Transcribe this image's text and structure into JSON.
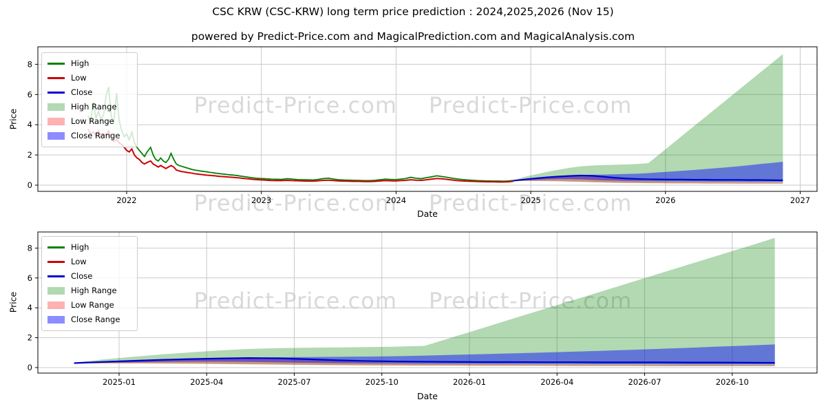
{
  "title": "CSC KRW (CSC-KRW) long term price prediction : 2024,2025,2026 (Nov 15)",
  "subtitle": "powered by Predict-Price.com and MagicalPrediction.com and MagicalAnalysis.com",
  "watermark": {
    "text": "Predict-Price.com"
  },
  "colors": {
    "high_line": "#008000",
    "low_line": "#cc0000",
    "close_line": "#0000cc",
    "high_range_fill": "rgba(0,128,0,0.30)",
    "low_range_fill": "rgba(255,0,0,0.30)",
    "close_range_fill": "rgba(0,0,255,0.45)",
    "grid": "#c9c9c9",
    "spine": "#000000"
  },
  "legend": {
    "items": [
      {
        "label": "High",
        "type": "line",
        "color": "rgba(0,128,0,1)"
      },
      {
        "label": "Low",
        "type": "line",
        "color": "rgba(204,0,0,1)"
      },
      {
        "label": "Close",
        "type": "line",
        "color": "rgba(0,0,204,1)"
      },
      {
        "label": "High Range",
        "type": "patch",
        "color": "rgba(0,128,0,0.30)"
      },
      {
        "label": "Low Range",
        "type": "patch",
        "color": "rgba(255,0,0,0.30)"
      },
      {
        "label": "Close Range",
        "type": "patch",
        "color": "rgba(0,0,255,0.45)"
      }
    ]
  },
  "chart_data": {
    "type": "line",
    "title": "CSC KRW (CSC-KRW) long term price prediction : 2024,2025,2026 (Nov 15)",
    "xlabel": "Date",
    "ylabel": "Price",
    "top_chart": {
      "ylabel": "Price",
      "xlabel": "Date",
      "y_ticks": [
        0,
        2,
        4,
        6,
        8
      ],
      "ylim": [
        -0.4,
        9.15
      ],
      "x_ticks": [
        {
          "date": "2022-01-01",
          "label": "2022"
        },
        {
          "date": "2023-01-01",
          "label": "2023"
        },
        {
          "date": "2024-01-01",
          "label": "2024"
        },
        {
          "date": "2025-01-01",
          "label": "2025"
        },
        {
          "date": "2026-01-01",
          "label": "2026"
        },
        {
          "date": "2027-01-01",
          "label": "2027"
        }
      ]
    },
    "bottom_chart": {
      "ylabel": "Price",
      "xlabel": "Date",
      "y_ticks": [
        0,
        2,
        4,
        6,
        8
      ],
      "ylim": [
        -0.4,
        9.1
      ],
      "x_ticks": [
        {
          "date": "2025-01-01",
          "label": "2025-01"
        },
        {
          "date": "2025-04-01",
          "label": "2025-04"
        },
        {
          "date": "2025-07-01",
          "label": "2025-07"
        },
        {
          "date": "2025-10-01",
          "label": "2025-10"
        },
        {
          "date": "2026-01-01",
          "label": "2026-01"
        },
        {
          "date": "2026-04-01",
          "label": "2026-04"
        },
        {
          "date": "2026-07-01",
          "label": "2026-07"
        },
        {
          "date": "2026-10-01",
          "label": "2026-10"
        }
      ]
    },
    "history": {
      "note": "observed High/Low lines, top chart only; points are [date, high, low]",
      "points": [
        [
          "2021-09-18",
          4.6,
          3.7
        ],
        [
          "2021-09-25",
          4.2,
          3.4
        ],
        [
          "2021-10-02",
          5.5,
          3.5
        ],
        [
          "2021-10-09",
          4.4,
          3.3
        ],
        [
          "2021-10-16",
          4.9,
          3.6
        ],
        [
          "2021-10-23",
          4.3,
          3.2
        ],
        [
          "2021-10-30",
          4.7,
          3.4
        ],
        [
          "2021-11-06",
          5.9,
          3.3
        ],
        [
          "2021-11-13",
          6.5,
          3.6
        ],
        [
          "2021-11-20",
          4.6,
          3.1
        ],
        [
          "2021-11-27",
          4.1,
          2.9
        ],
        [
          "2021-12-04",
          6.1,
          3.0
        ],
        [
          "2021-12-11",
          4.3,
          2.8
        ],
        [
          "2021-12-18",
          3.6,
          2.7
        ],
        [
          "2021-12-25",
          3.2,
          2.5
        ],
        [
          "2022-01-01",
          3.4,
          2.3
        ],
        [
          "2022-01-08",
          3.0,
          2.2
        ],
        [
          "2022-01-15",
          3.5,
          2.4
        ],
        [
          "2022-01-22",
          2.8,
          2.0
        ],
        [
          "2022-01-29",
          2.5,
          1.8
        ],
        [
          "2022-02-05",
          2.3,
          1.7
        ],
        [
          "2022-02-12",
          2.1,
          1.5
        ],
        [
          "2022-02-19",
          1.9,
          1.4
        ],
        [
          "2022-02-26",
          2.2,
          1.5
        ],
        [
          "2022-03-05",
          2.5,
          1.6
        ],
        [
          "2022-03-12",
          2.0,
          1.4
        ],
        [
          "2022-03-19",
          1.7,
          1.3
        ],
        [
          "2022-03-26",
          1.6,
          1.2
        ],
        [
          "2022-04-02",
          1.8,
          1.3
        ],
        [
          "2022-04-09",
          1.6,
          1.2
        ],
        [
          "2022-04-16",
          1.5,
          1.1
        ],
        [
          "2022-04-23",
          1.7,
          1.2
        ],
        [
          "2022-04-30",
          2.1,
          1.3
        ],
        [
          "2022-05-07",
          1.7,
          1.2
        ],
        [
          "2022-05-14",
          1.4,
          1.0
        ],
        [
          "2022-05-21",
          1.3,
          0.95
        ],
        [
          "2022-05-28",
          1.25,
          0.9
        ],
        [
          "2022-06-04",
          1.2,
          0.88
        ],
        [
          "2022-06-11",
          1.15,
          0.85
        ],
        [
          "2022-06-18",
          1.1,
          0.82
        ],
        [
          "2022-06-25",
          1.05,
          0.8
        ],
        [
          "2022-07-02",
          1.0,
          0.76
        ],
        [
          "2022-07-09",
          0.98,
          0.74
        ],
        [
          "2022-07-16",
          0.95,
          0.72
        ],
        [
          "2022-07-23",
          0.92,
          0.7
        ],
        [
          "2022-07-30",
          0.9,
          0.68
        ],
        [
          "2022-08-06",
          0.88,
          0.66
        ],
        [
          "2022-08-13",
          0.85,
          0.65
        ],
        [
          "2022-08-20",
          0.83,
          0.63
        ],
        [
          "2022-08-27",
          0.8,
          0.62
        ],
        [
          "2022-09-03",
          0.78,
          0.6
        ],
        [
          "2022-09-10",
          0.76,
          0.58
        ],
        [
          "2022-09-17",
          0.74,
          0.57
        ],
        [
          "2022-09-24",
          0.72,
          0.56
        ],
        [
          "2022-10-01",
          0.7,
          0.54
        ],
        [
          "2022-10-08",
          0.68,
          0.53
        ],
        [
          "2022-10-15",
          0.67,
          0.52
        ],
        [
          "2022-10-22",
          0.65,
          0.5
        ],
        [
          "2022-10-29",
          0.63,
          0.49
        ],
        [
          "2022-11-05",
          0.6,
          0.47
        ],
        [
          "2022-11-12",
          0.58,
          0.45
        ],
        [
          "2022-11-19",
          0.55,
          0.43
        ],
        [
          "2022-11-26",
          0.53,
          0.42
        ],
        [
          "2022-12-03",
          0.5,
          0.4
        ],
        [
          "2022-12-10",
          0.48,
          0.38
        ],
        [
          "2022-12-17",
          0.46,
          0.37
        ],
        [
          "2022-12-24",
          0.45,
          0.36
        ],
        [
          "2022-12-31",
          0.44,
          0.35
        ],
        [
          "2023-01-14",
          0.42,
          0.33
        ],
        [
          "2023-01-28",
          0.4,
          0.31
        ],
        [
          "2023-02-11",
          0.39,
          0.3
        ],
        [
          "2023-02-25",
          0.38,
          0.3
        ],
        [
          "2023-03-11",
          0.43,
          0.32
        ],
        [
          "2023-03-25",
          0.4,
          0.3
        ],
        [
          "2023-04-08",
          0.37,
          0.29
        ],
        [
          "2023-04-22",
          0.36,
          0.28
        ],
        [
          "2023-05-06",
          0.35,
          0.27
        ],
        [
          "2023-05-20",
          0.34,
          0.27
        ],
        [
          "2023-06-03",
          0.38,
          0.29
        ],
        [
          "2023-06-17",
          0.44,
          0.32
        ],
        [
          "2023-07-01",
          0.46,
          0.33
        ],
        [
          "2023-07-15",
          0.4,
          0.3
        ],
        [
          "2023-07-29",
          0.36,
          0.28
        ],
        [
          "2023-08-12",
          0.34,
          0.27
        ],
        [
          "2023-08-26",
          0.33,
          0.26
        ],
        [
          "2023-09-09",
          0.32,
          0.25
        ],
        [
          "2023-09-23",
          0.31,
          0.25
        ],
        [
          "2023-10-07",
          0.3,
          0.24
        ],
        [
          "2023-10-21",
          0.3,
          0.24
        ],
        [
          "2023-11-04",
          0.32,
          0.25
        ],
        [
          "2023-11-18",
          0.36,
          0.28
        ],
        [
          "2023-12-02",
          0.4,
          0.3
        ],
        [
          "2023-12-16",
          0.38,
          0.29
        ],
        [
          "2023-12-30",
          0.37,
          0.28
        ],
        [
          "2024-01-13",
          0.4,
          0.3
        ],
        [
          "2024-01-27",
          0.44,
          0.32
        ],
        [
          "2024-02-10",
          0.52,
          0.36
        ],
        [
          "2024-02-24",
          0.46,
          0.33
        ],
        [
          "2024-03-09",
          0.43,
          0.32
        ],
        [
          "2024-03-23",
          0.5,
          0.36
        ],
        [
          "2024-04-06",
          0.55,
          0.4
        ],
        [
          "2024-04-20",
          0.62,
          0.44
        ],
        [
          "2024-05-04",
          0.57,
          0.42
        ],
        [
          "2024-05-18",
          0.52,
          0.38
        ],
        [
          "2024-06-01",
          0.46,
          0.34
        ],
        [
          "2024-06-15",
          0.41,
          0.3
        ],
        [
          "2024-06-29",
          0.37,
          0.28
        ],
        [
          "2024-07-13",
          0.34,
          0.26
        ],
        [
          "2024-07-27",
          0.32,
          0.25
        ],
        [
          "2024-08-10",
          0.3,
          0.24
        ],
        [
          "2024-08-24",
          0.29,
          0.23
        ],
        [
          "2024-09-07",
          0.28,
          0.22
        ],
        [
          "2024-09-21",
          0.27,
          0.22
        ],
        [
          "2024-10-05",
          0.27,
          0.21
        ],
        [
          "2024-10-19",
          0.26,
          0.21
        ],
        [
          "2024-11-02",
          0.28,
          0.22
        ],
        [
          "2024-11-15",
          0.31,
          0.26
        ]
      ]
    },
    "prediction": {
      "note": "forecast bands drawn on both charts, Nov 2024 - Nov 2026",
      "dates": [
        "2024-11-15",
        "2024-12-15",
        "2025-01-15",
        "2025-02-15",
        "2025-03-15",
        "2025-04-15",
        "2025-05-15",
        "2025-06-15",
        "2025-07-15",
        "2025-08-15",
        "2025-09-15",
        "2025-10-15",
        "2025-11-15",
        "2025-12-15",
        "2026-01-15",
        "2026-02-15",
        "2026-03-15",
        "2026-04-15",
        "2026-05-15",
        "2026-06-15",
        "2026-07-15",
        "2026-08-15",
        "2026-09-15",
        "2026-10-15",
        "2026-11-15"
      ],
      "close": [
        0.3,
        0.38,
        0.45,
        0.52,
        0.57,
        0.61,
        0.64,
        0.62,
        0.56,
        0.49,
        0.44,
        0.41,
        0.39,
        0.38,
        0.37,
        0.37,
        0.36,
        0.36,
        0.35,
        0.35,
        0.35,
        0.34,
        0.34,
        0.33,
        0.32
      ],
      "high_range_top": [
        0.32,
        0.55,
        0.72,
        0.88,
        1.02,
        1.15,
        1.25,
        1.3,
        1.33,
        1.35,
        1.37,
        1.4,
        1.45,
        2.05,
        2.65,
        3.26,
        3.86,
        4.46,
        5.06,
        5.66,
        6.27,
        6.87,
        7.47,
        8.07,
        8.68
      ],
      "close_range_top": [
        0.32,
        0.42,
        0.5,
        0.56,
        0.61,
        0.64,
        0.67,
        0.69,
        0.7,
        0.72,
        0.74,
        0.76,
        0.8,
        0.85,
        0.9,
        0.95,
        1.0,
        1.06,
        1.12,
        1.18,
        1.25,
        1.32,
        1.4,
        1.47,
        1.55
      ],
      "close_range_bottom": [
        0.28,
        0.32,
        0.35,
        0.38,
        0.4,
        0.4,
        0.38,
        0.35,
        0.32,
        0.3,
        0.28,
        0.27,
        0.26,
        0.25,
        0.25,
        0.24,
        0.24,
        0.24,
        0.23,
        0.23,
        0.23,
        0.22,
        0.22,
        0.22,
        0.22
      ],
      "low_range_top": [
        0.3,
        0.4,
        0.47,
        0.52,
        0.56,
        0.6,
        0.62,
        0.59,
        0.52,
        0.44,
        0.36,
        0.3,
        0.27,
        0.25,
        0.24,
        0.23,
        0.22,
        0.22,
        0.21,
        0.21,
        0.2,
        0.2,
        0.2,
        0.19,
        0.19
      ],
      "low_range_bottom": [
        0.27,
        0.28,
        0.28,
        0.27,
        0.26,
        0.24,
        0.22,
        0.2,
        0.18,
        0.16,
        0.15,
        0.14,
        0.13,
        0.13,
        0.12,
        0.12,
        0.12,
        0.11,
        0.11,
        0.11,
        0.1,
        0.1,
        0.1,
        0.1,
        0.1
      ]
    }
  }
}
